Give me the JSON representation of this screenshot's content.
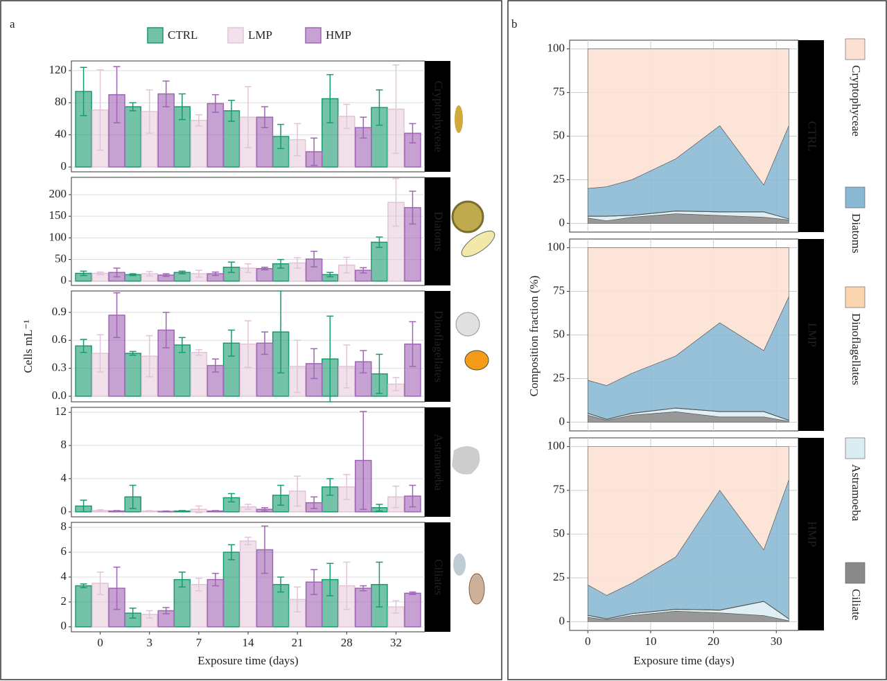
{
  "chart_data": [
    {
      "type": "bar",
      "panel": "a",
      "ylabel": "Cells mL⁻¹",
      "strip": "Cryptophyceae",
      "ylim": [
        -6,
        132
      ],
      "yticks": [
        0,
        40,
        80,
        120
      ],
      "grid": true,
      "series": [
        {
          "name": "CTRL",
          "color": "#179b6e",
          "values": [
            94,
            75,
            75,
            70,
            38,
            85,
            74
          ],
          "errors": [
            30,
            5,
            16,
            13,
            15,
            30,
            22
          ]
        },
        {
          "name": "LMP",
          "color": "#e2c3d8",
          "values": [
            71,
            69,
            58,
            62,
            34,
            63,
            72
          ],
          "errors": [
            50,
            27,
            7,
            38,
            20,
            15,
            55
          ]
        },
        {
          "name": "HMP",
          "color": "#a064b4",
          "values": [
            90,
            91,
            79,
            62,
            19,
            49,
            42
          ],
          "errors": [
            35,
            16,
            11,
            13,
            17,
            13,
            12
          ]
        }
      ]
    },
    {
      "type": "bar",
      "strip": "Diatoms",
      "ylim": [
        -10,
        240
      ],
      "yticks": [
        0,
        50,
        100,
        150,
        200
      ],
      "grid": true,
      "series": [
        {
          "color": "#179b6e",
          "values": [
            18,
            15,
            20,
            32,
            40,
            15,
            90
          ],
          "errors": [
            5,
            2,
            3,
            12,
            10,
            5,
            12
          ]
        },
        {
          "color": "#e2c3d8",
          "values": [
            18,
            17,
            17,
            30,
            42,
            37,
            182
          ],
          "errors": [
            3,
            5,
            8,
            10,
            12,
            18,
            55
          ]
        },
        {
          "color": "#a064b4",
          "values": [
            20,
            14,
            17,
            29,
            51,
            25,
            170
          ],
          "errors": [
            10,
            3,
            4,
            3,
            18,
            6,
            38
          ]
        }
      ]
    },
    {
      "type": "bar",
      "strip": "Dinoflagellates",
      "ylim": [
        -0.06,
        1.13
      ],
      "yticks": [
        {
          "value": 0,
          "label": "0.0"
        },
        0.3,
        0.6,
        0.9
      ],
      "grid": true,
      "series": [
        {
          "color": "#179b6e",
          "values": [
            0.54,
            0.46,
            0.55,
            0.57,
            0.69,
            0.4,
            0.24
          ],
          "errors": [
            0.07,
            0.02,
            0.08,
            0.14,
            0.44,
            0.46,
            0.21
          ]
        },
        {
          "color": "#e2c3d8",
          "values": [
            0.46,
            0.43,
            0.47,
            0.56,
            0.32,
            0.32,
            0.13
          ],
          "errors": [
            0.2,
            0.22,
            0.03,
            0.25,
            0.28,
            0.23,
            0.07
          ]
        },
        {
          "color": "#a064b4",
          "values": [
            0.87,
            0.71,
            0.33,
            0.57,
            0.35,
            0.37,
            0.56
          ],
          "errors": [
            0.24,
            0.19,
            0.07,
            0.12,
            0.16,
            0.12,
            0.24
          ]
        }
      ]
    },
    {
      "type": "bar",
      "strip": "Astramoeba",
      "ylim": [
        -0.6,
        12.6
      ],
      "yticks": [
        0,
        4,
        8,
        12
      ],
      "grid": true,
      "series": [
        {
          "color": "#179b6e",
          "values": [
            0.7,
            1.8,
            0.1,
            1.7,
            2.0,
            3.0,
            0.5
          ],
          "errors": [
            0.7,
            1.4,
            0.05,
            0.5,
            1.2,
            1.0,
            0.4
          ]
        },
        {
          "color": "#e2c3d8",
          "values": [
            0.15,
            0.1,
            0.3,
            0.6,
            2.5,
            3.0,
            1.8
          ],
          "errors": [
            0.1,
            0.05,
            0.4,
            0.3,
            1.8,
            1.5,
            1.3
          ]
        },
        {
          "color": "#a064b4",
          "values": [
            0.1,
            0.05,
            0.1,
            0.3,
            1.1,
            6.2,
            1.9
          ],
          "errors": [
            0.05,
            0.05,
            0.05,
            0.2,
            0.7,
            5.9,
            1.3
          ]
        }
      ]
    },
    {
      "type": "bar",
      "strip": "Ciliates",
      "xlabel": "Exposure time (days)",
      "categories": [
        "0",
        "3",
        "7",
        "14",
        "21",
        "28",
        "32"
      ],
      "ylim": [
        -0.4,
        8.4
      ],
      "yticks": [
        0,
        2,
        4,
        6,
        8
      ],
      "grid": true,
      "series": [
        {
          "color": "#179b6e",
          "values": [
            3.3,
            1.1,
            3.8,
            6.0,
            3.4,
            3.8,
            3.4
          ],
          "errors": [
            0.15,
            0.4,
            0.6,
            0.6,
            0.6,
            1.3,
            1.8
          ]
        },
        {
          "color": "#e2c3d8",
          "values": [
            3.5,
            1.0,
            3.4,
            6.9,
            2.2,
            3.3,
            1.6
          ],
          "errors": [
            0.9,
            0.3,
            0.5,
            0.3,
            1.0,
            1.9,
            0.5
          ]
        },
        {
          "color": "#a064b4",
          "values": [
            3.1,
            1.3,
            3.8,
            6.2,
            3.6,
            3.1,
            2.7
          ],
          "errors": [
            1.7,
            0.25,
            0.5,
            1.9,
            1.0,
            0.2,
            0.1
          ]
        }
      ]
    },
    {
      "type": "area",
      "panel": "b",
      "ylabel": "Composition fraction (%)",
      "strip": "CTRL",
      "x": [
        0,
        3,
        7,
        14,
        21,
        28,
        32
      ],
      "xlim": [
        -2.9,
        33.5
      ],
      "xticks": [
        0,
        10,
        20,
        30
      ],
      "ylim": [
        -5,
        105
      ],
      "yticks": [
        0,
        25,
        50,
        75,
        100
      ],
      "grid": true,
      "series": [
        {
          "name": "Cryptophyceae",
          "color": "#fde0d4",
          "values": [
            80,
            79,
            75,
            63,
            44,
            78,
            44
          ]
        },
        {
          "name": "Diatoms",
          "color": "#89b8d3",
          "values": [
            15.8,
            16.8,
            20.3,
            29.8,
            49.3,
            15.3,
            53.4
          ]
        },
        {
          "name": "Dinoflagellates",
          "color": "#fbd5b0",
          "values": [
            0.2,
            0.2,
            0.2,
            0.2,
            0.2,
            0.2,
            0.1
          ]
        },
        {
          "name": "Astramoeba",
          "color": "#dcedf1",
          "values": [
            1,
            2.5,
            1,
            1.5,
            2,
            3,
            0.5
          ]
        },
        {
          "name": "Ciliate",
          "color": "#8a8a8a",
          "values": [
            3,
            1.5,
            3.5,
            5.5,
            4.5,
            3.5,
            2
          ]
        }
      ]
    },
    {
      "type": "area",
      "strip": "LMP",
      "x": [
        0,
        3,
        7,
        14,
        21,
        28,
        32
      ],
      "xlim": [
        -2.9,
        33.5
      ],
      "xticks": [
        0,
        10,
        20,
        30
      ],
      "ylim": [
        -5,
        105
      ],
      "yticks": [
        0,
        25,
        50,
        75,
        100
      ],
      "grid": true,
      "series": [
        {
          "color": "#fde0d4",
          "values": [
            76,
            79,
            72,
            62,
            43,
            59,
            28
          ]
        },
        {
          "color": "#89b8d3",
          "values": [
            18.8,
            19.3,
            22.8,
            29.8,
            50.8,
            34.8,
            70.8
          ]
        },
        {
          "color": "#fbd5b0",
          "values": [
            0.2,
            0.2,
            0.2,
            0.2,
            0.2,
            0.2,
            0.2
          ]
        },
        {
          "color": "#dcedf1",
          "values": [
            1,
            0.5,
            1,
            2,
            3,
            3,
            0.5
          ]
        },
        {
          "color": "#8a8a8a",
          "values": [
            4,
            1,
            4,
            6,
            3,
            3,
            0.5
          ]
        }
      ]
    },
    {
      "type": "area",
      "strip": "HMP",
      "xlabel": "Exposure time (days)",
      "x": [
        0,
        3,
        7,
        14,
        21,
        28,
        32
      ],
      "xlim": [
        -2.9,
        33.5
      ],
      "xticks": [
        0,
        10,
        20,
        30
      ],
      "ylim": [
        -5,
        105
      ],
      "yticks": [
        0,
        25,
        50,
        75,
        100
      ],
      "grid": true,
      "series": [
        {
          "color": "#fde0d4",
          "values": [
            79,
            85,
            78,
            63,
            25,
            59,
            19
          ]
        },
        {
          "color": "#89b8d3",
          "values": [
            17.3,
            13.3,
            17.3,
            29.8,
            68.3,
            29.3,
            79.3
          ]
        },
        {
          "color": "#fbd5b0",
          "values": [
            0.2,
            0.2,
            0.2,
            0.2,
            0.2,
            0.2,
            0.2
          ]
        },
        {
          "color": "#dcedf1",
          "values": [
            1,
            0.5,
            1,
            1,
            1.5,
            8,
            1
          ]
        },
        {
          "color": "#8a8a8a",
          "values": [
            2.5,
            1,
            3.5,
            6,
            5,
            3.5,
            0.5
          ]
        }
      ]
    }
  ]
}
